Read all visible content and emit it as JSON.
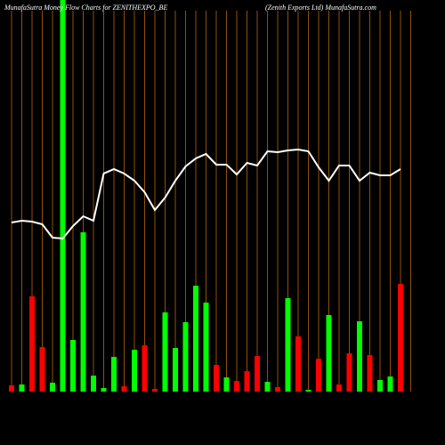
{
  "chart_data": {
    "type": "bar-line",
    "title": "MunafaSutra  Money Flow  Charts for ZENITHEXPO_BE",
    "subtitle": "(Zenith Exports Ltd) MunafaSutra.com",
    "ylim": [
      0,
      440
    ],
    "series": [
      {
        "type": "bar",
        "values": [
          7,
          8,
          107,
          50,
          10,
          440,
          58,
          179,
          18,
          4,
          39,
          6,
          47,
          52,
          3,
          89,
          49,
          78,
          119,
          100,
          30,
          16,
          12,
          23,
          40,
          11,
          5,
          105,
          62,
          2,
          37,
          86,
          8,
          43,
          79,
          41,
          13,
          17,
          121
        ],
        "colors": [
          "#ff0000",
          "#00ff00",
          "#ff0000",
          "#ff0000",
          "#00ff00",
          "#00ff00",
          "#00ff00",
          "#00ff00",
          "#00ff00",
          "#00ff00",
          "#00ff00",
          "#ff0000",
          "#00ff00",
          "#ff0000",
          "#ff0000",
          "#00ff00",
          "#00ff00",
          "#00ff00",
          "#00ff00",
          "#00ff00",
          "#ff0000",
          "#00ff00",
          "#ff0000",
          "#ff0000",
          "#ff0000",
          "#00ff00",
          "#ff0000",
          "#00ff00",
          "#ff0000",
          "#00ff00",
          "#ff0000",
          "#00ff00",
          "#ff0000",
          "#ff0000",
          "#00ff00",
          "#ff0000",
          "#00ff00",
          "#00ff00",
          "#ff0000"
        ]
      },
      {
        "type": "line",
        "color": "#ffffff",
        "values": [
          190,
          192,
          191,
          188,
          173,
          172,
          186,
          197,
          192,
          245,
          250,
          245,
          237,
          224,
          204,
          218,
          237,
          253,
          262,
          267,
          255,
          255,
          244,
          257,
          254,
          270,
          269,
          271,
          272,
          270,
          252,
          237,
          254,
          254,
          237,
          246,
          243,
          243,
          250
        ]
      }
    ]
  }
}
